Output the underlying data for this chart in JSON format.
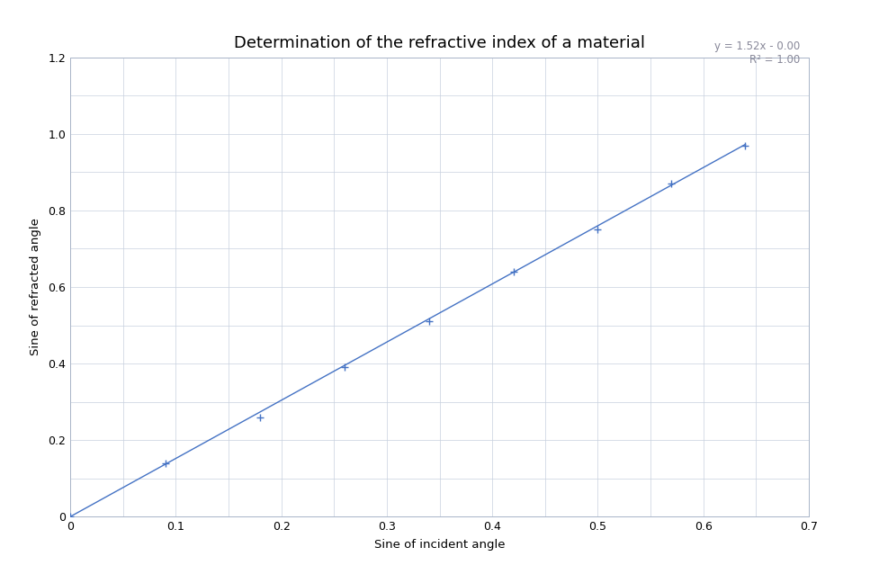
{
  "title": "Determination of the refractive index of a material",
  "xlabel": "Sine of incident angle",
  "ylabel": "Sine of refracted angle",
  "x_data": [
    0.0,
    0.09,
    0.18,
    0.26,
    0.34,
    0.42,
    0.5,
    0.57,
    0.64
  ],
  "y_data": [
    0.0,
    0.14,
    0.26,
    0.39,
    0.51,
    0.64,
    0.75,
    0.87,
    0.97
  ],
  "slope": 1.52,
  "intercept": 0.0,
  "r_squared": 1.0,
  "xlim": [
    0,
    0.7
  ],
  "ylim": [
    0,
    1.2
  ],
  "x_ticks": [
    0,
    0.1,
    0.2,
    0.3,
    0.4,
    0.5,
    0.6,
    0.7
  ],
  "y_ticks": [
    0,
    0.2,
    0.4,
    0.6,
    0.8,
    1.0,
    1.2
  ],
  "line_color": "#4472C4",
  "marker_color": "#4472C4",
  "background_color": "#ffffff",
  "grid_color": "#c8d0de",
  "equation_text": "y = 1.52x - 0.00",
  "r2_text": "R² = 1.00",
  "title_fontsize": 13,
  "label_fontsize": 9.5,
  "tick_fontsize": 9,
  "annot_fontsize": 8.5
}
